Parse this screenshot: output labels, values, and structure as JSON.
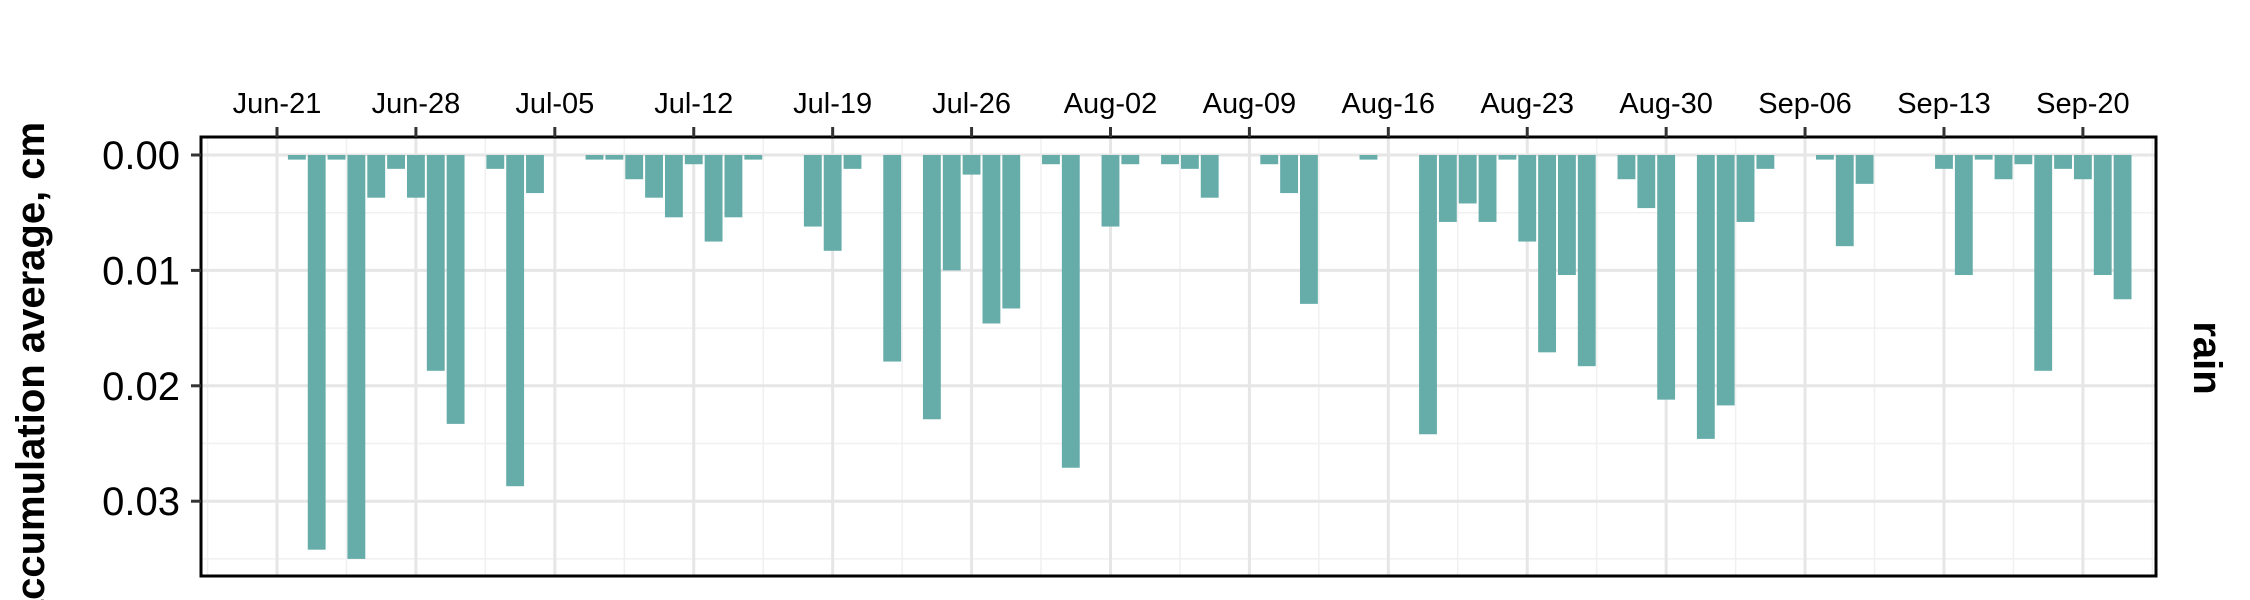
{
  "chart_data": {
    "type": "bar",
    "ylabel": "accumulation average, cm",
    "facet_label": "rain",
    "y_reversed": true,
    "ylim": [
      0,
      0.0365
    ],
    "yticks": [
      0.0,
      0.01,
      0.02,
      0.03
    ],
    "ytick_labels": [
      "0.00",
      "0.01",
      "0.02",
      "0.03"
    ],
    "xtick_labels": [
      "Jun-21",
      "Jun-28",
      "Jul-05",
      "Jul-12",
      "Jul-19",
      "Jul-26",
      "Aug-02",
      "Aug-09",
      "Aug-16",
      "Aug-23",
      "Aug-30",
      "Sep-06",
      "Sep-13",
      "Sep-20"
    ],
    "x_axis_position": "top",
    "grid": true,
    "bar_color": "#66ADAA",
    "x": [
      "Jun-22",
      "Jun-23",
      "Jun-24",
      "Jun-25",
      "Jun-26",
      "Jun-27",
      "Jun-28",
      "Jun-29",
      "Jun-30",
      "Jul-01",
      "Jul-02",
      "Jul-03",
      "Jul-04",
      "Jul-05",
      "Jul-06",
      "Jul-07",
      "Jul-08",
      "Jul-09",
      "Jul-10",
      "Jul-11",
      "Jul-12",
      "Jul-13",
      "Jul-14",
      "Jul-15",
      "Jul-16",
      "Jul-17",
      "Jul-18",
      "Jul-19",
      "Jul-20",
      "Jul-21",
      "Jul-22",
      "Jul-23",
      "Jul-24",
      "Jul-25",
      "Jul-26",
      "Jul-27",
      "Jul-28",
      "Jul-29",
      "Jul-30",
      "Jul-31",
      "Aug-01",
      "Aug-02",
      "Aug-03",
      "Aug-04",
      "Aug-05",
      "Aug-06",
      "Aug-07",
      "Aug-08",
      "Aug-09",
      "Aug-10",
      "Aug-11",
      "Aug-12",
      "Aug-13",
      "Aug-14",
      "Aug-15",
      "Aug-16",
      "Aug-17",
      "Aug-18",
      "Aug-19",
      "Aug-20",
      "Aug-21",
      "Aug-22",
      "Aug-23",
      "Aug-24",
      "Aug-25",
      "Aug-26",
      "Aug-27",
      "Aug-28",
      "Aug-29",
      "Aug-30",
      "Aug-31",
      "Sep-01",
      "Sep-02",
      "Sep-03",
      "Sep-04",
      "Sep-05",
      "Sep-06",
      "Sep-07",
      "Sep-08",
      "Sep-09",
      "Sep-10",
      "Sep-11",
      "Sep-12",
      "Sep-13",
      "Sep-14",
      "Sep-15",
      "Sep-16",
      "Sep-17",
      "Sep-18",
      "Sep-19",
      "Sep-20",
      "Sep-21",
      "Sep-22"
    ],
    "values": [
      0.0004,
      0.0342,
      0.0004,
      0.035,
      0.0037,
      0.0012,
      0.0037,
      0.0187,
      0.0233,
      0,
      0.0012,
      0.0287,
      0.0033,
      0,
      0,
      0.0004,
      0.0004,
      0.0021,
      0.0037,
      0.0054,
      0.0008,
      0.0075,
      0.0054,
      0.0004,
      0,
      0,
      0.0062,
      0.0083,
      0.0012,
      0,
      0.0179,
      0,
      0.0229,
      0.01,
      0.0017,
      0.0146,
      0.0133,
      0,
      0.0008,
      0.0271,
      0,
      0.0062,
      0.0008,
      0,
      0.0008,
      0.0012,
      0.0037,
      0,
      0,
      0.0008,
      0.0033,
      0.0129,
      0,
      0,
      0.0004,
      0,
      0,
      0.0242,
      0.0058,
      0.0042,
      0.0058,
      0.0004,
      0.0075,
      0.0171,
      0.0104,
      0.0183,
      0,
      0.0021,
      0.0046,
      0.0212,
      0,
      0.0246,
      0.0217,
      0.0058,
      0.0012,
      0,
      0,
      0.0004,
      0.0079,
      0.0025,
      0,
      0,
      0,
      0.0012,
      0.0104,
      0.0004,
      0.0021,
      0.0008,
      0.0187,
      0.0012,
      0.0021,
      0.0104,
      0.0125
    ]
  }
}
